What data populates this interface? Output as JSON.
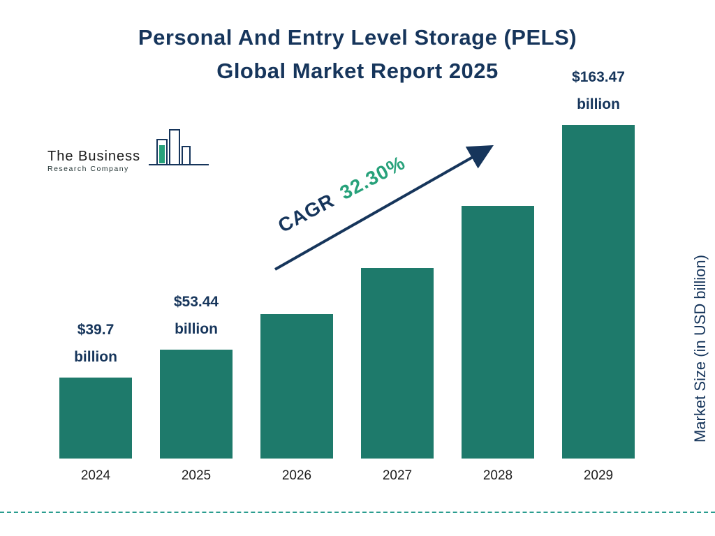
{
  "title": {
    "line1": "Personal And Entry Level Storage (PELS)",
    "line2": "Global Market Report 2025"
  },
  "logo": {
    "line1": "The Business",
    "line2": "Research Company"
  },
  "cagr": {
    "prefix": "CAGR",
    "value": "32.30%"
  },
  "y_axis_label": "Market Size (in USD billion)",
  "colors": {
    "bar": "#1E7A6B",
    "navy": "#16355B",
    "green": "#27A17A",
    "dashed_line": "#2A9D8F"
  },
  "chart_data": {
    "type": "bar",
    "title": "Personal And Entry Level Storage (PELS) Global Market Report 2025",
    "categories": [
      "2024",
      "2025",
      "2026",
      "2027",
      "2028",
      "2029"
    ],
    "values": [
      39.7,
      53.44,
      70.7,
      93.5,
      123.7,
      163.47
    ],
    "value_labels": [
      {
        "index": 0,
        "line1": "$39.7",
        "line2": "billion"
      },
      {
        "index": 1,
        "line1": "$53.44",
        "line2": "billion"
      },
      {
        "index": 5,
        "line1": "$163.47",
        "line2": "billion"
      }
    ],
    "annotation": "CAGR 32.30%",
    "xlabel": "",
    "ylabel": "Market Size (in USD billion)",
    "ylim": [
      0,
      170
    ],
    "grid": false,
    "legend": "none"
  }
}
